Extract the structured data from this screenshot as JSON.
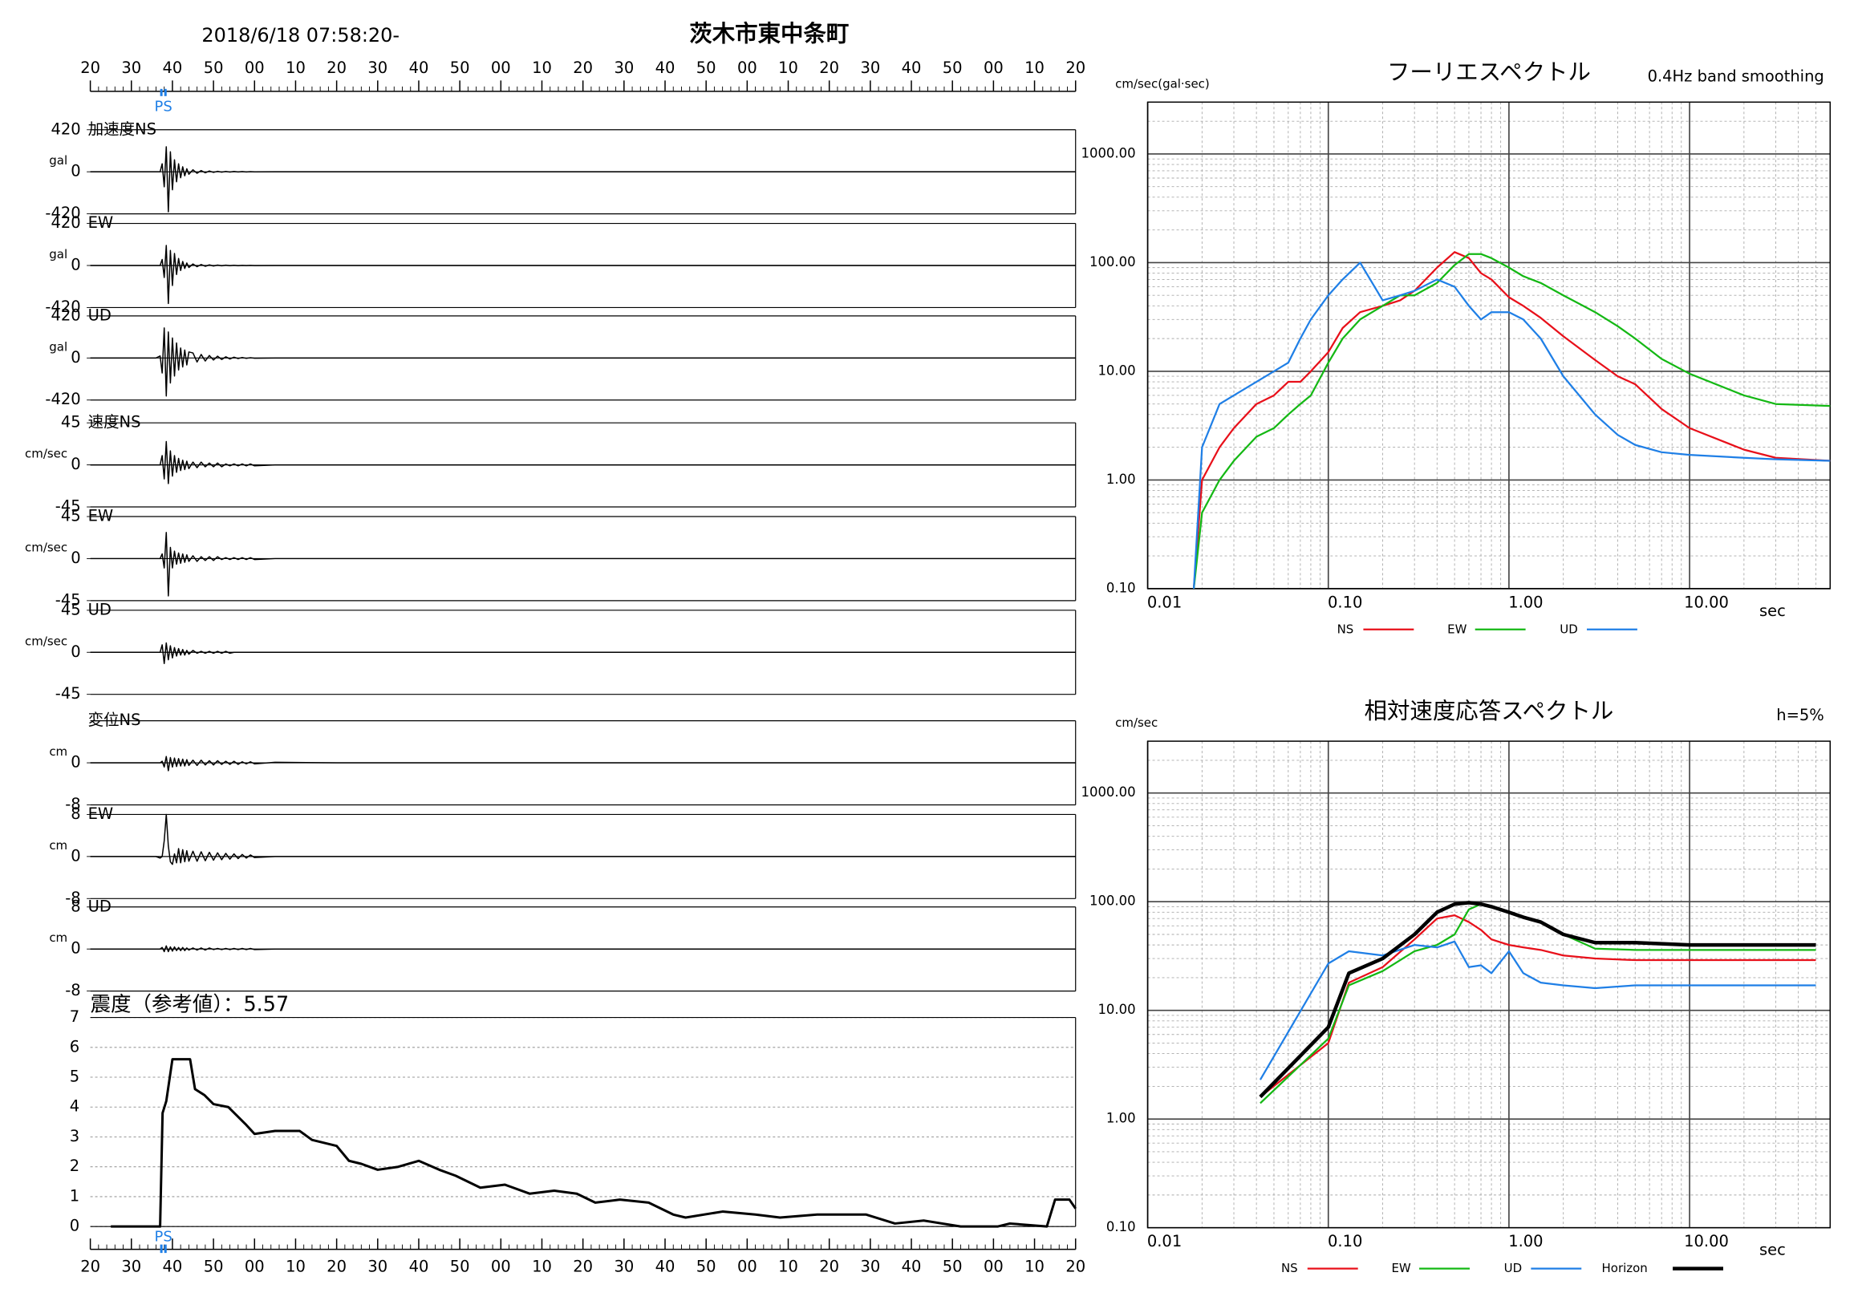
{
  "chart_data": [
    {
      "type": "waveforms",
      "title": "茨木市東中条町",
      "subtitle": "2018/6/18 07:58:20-",
      "xlim": [
        0,
        240
      ],
      "xticks": [
        {
          "value": 0,
          "label": "20"
        },
        {
          "value": 10,
          "label": "30"
        },
        {
          "value": 20,
          "label": "40"
        },
        {
          "value": 30,
          "label": "50"
        },
        {
          "value": 40,
          "label": "00"
        },
        {
          "value": 50,
          "label": "10"
        },
        {
          "value": 60,
          "label": "20"
        },
        {
          "value": 70,
          "label": "30"
        },
        {
          "value": 80,
          "label": "40"
        },
        {
          "value": 90,
          "label": "50"
        },
        {
          "value": 100,
          "label": "00"
        },
        {
          "value": 110,
          "label": "10"
        },
        {
          "value": 120,
          "label": "20"
        },
        {
          "value": 130,
          "label": "30"
        },
        {
          "value": 140,
          "label": "40"
        },
        {
          "value": 150,
          "label": "50"
        },
        {
          "value": 160,
          "label": "00"
        },
        {
          "value": 170,
          "label": "10"
        },
        {
          "value": 180,
          "label": "20"
        },
        {
          "value": 190,
          "label": "30"
        },
        {
          "value": 200,
          "label": "40"
        },
        {
          "value": 210,
          "label": "50"
        },
        {
          "value": 220,
          "label": "00"
        },
        {
          "value": 230,
          "label": "10"
        },
        {
          "value": 240,
          "label": "20"
        }
      ],
      "phase_label": "PS",
      "phase_x": [
        17.3,
        18.3
      ],
      "phase_color": "#1f7fe6",
      "x": [
        0,
        10,
        16,
        17,
        17.5,
        18,
        18.5,
        19,
        19.5,
        20,
        20.5,
        21,
        21.5,
        22,
        22.5,
        23,
        23.5,
        24,
        25,
        26,
        27,
        28,
        29,
        30,
        31,
        32,
        33,
        34,
        35,
        36,
        37,
        38,
        39,
        40,
        45,
        60,
        75,
        90,
        105,
        120,
        135,
        150,
        165,
        180,
        195,
        210,
        225,
        240
      ],
      "panels": [
        {
          "label": "加速度NS",
          "unit": "gal",
          "ylim": [
            -420,
            420
          ],
          "yticks": [
            420,
            0,
            -420
          ],
          "color": "#000000",
          "values": [
            0,
            0,
            0,
            0,
            80,
            -150,
            250,
            -400,
            200,
            -180,
            120,
            -100,
            80,
            -60,
            50,
            -40,
            30,
            -25,
            20,
            -15,
            12,
            -10,
            8,
            -6,
            5,
            -4,
            4,
            -3,
            3,
            -2,
            2,
            -2,
            1,
            -1,
            0,
            0,
            0,
            0,
            0,
            0,
            0,
            0,
            0,
            0,
            0,
            0,
            0,
            0
          ]
        },
        {
          "label": "EW",
          "unit": "gal",
          "ylim": [
            -420,
            420
          ],
          "yticks": [
            420,
            0,
            -420
          ],
          "color": "#000000",
          "values": [
            0,
            0,
            0,
            0,
            60,
            -120,
            200,
            -380,
            150,
            -200,
            120,
            -90,
            70,
            -50,
            40,
            -30,
            25,
            -20,
            15,
            -12,
            10,
            -8,
            6,
            -5,
            4,
            -3,
            3,
            -2,
            2,
            -2,
            1,
            -1,
            1,
            -1,
            0,
            0,
            0,
            0,
            0,
            0,
            0,
            0,
            0,
            0,
            0,
            0,
            0,
            0
          ]
        },
        {
          "label": "UD",
          "unit": "gal",
          "ylim": [
            -420,
            420
          ],
          "yticks": [
            420,
            0,
            -420
          ],
          "color": "#000000",
          "values": [
            0,
            0,
            0,
            20,
            -150,
            300,
            -380,
            260,
            -250,
            200,
            -180,
            150,
            -120,
            100,
            -90,
            80,
            -70,
            60,
            50,
            -40,
            35,
            -30,
            25,
            -20,
            18,
            -15,
            12,
            -10,
            8,
            -6,
            5,
            -4,
            3,
            -2,
            0,
            0,
            0,
            0,
            0,
            0,
            0,
            0,
            0,
            0,
            0,
            0,
            0,
            0
          ]
        },
        {
          "label": "速度NS",
          "unit": "cm/sec",
          "ylim": [
            -45,
            45
          ],
          "yticks": [
            45,
            0,
            -45
          ],
          "color": "#000000",
          "values": [
            0,
            0,
            0,
            0,
            10,
            -15,
            25,
            -20,
            15,
            -12,
            10,
            -8,
            7,
            -6,
            5,
            -5,
            4,
            -4,
            3,
            -3,
            3,
            -2,
            2,
            -2,
            2,
            -2,
            1,
            -1,
            1,
            -1,
            1,
            -1,
            1,
            -1,
            0,
            0,
            0,
            0,
            0,
            0,
            0,
            0,
            0,
            0,
            0,
            0,
            0,
            0
          ]
        },
        {
          "label": "EW",
          "unit": "cm/sec",
          "ylim": [
            -45,
            45
          ],
          "yticks": [
            45,
            0,
            -45
          ],
          "color": "#000000",
          "values": [
            0,
            0,
            0,
            0,
            5,
            -10,
            28,
            -40,
            12,
            -10,
            8,
            -6,
            6,
            -5,
            5,
            -4,
            4,
            -3,
            3,
            -3,
            2,
            -2,
            2,
            -2,
            2,
            -1,
            1,
            -1,
            1,
            -1,
            1,
            -1,
            1,
            -1,
            0,
            0,
            0,
            0,
            0,
            0,
            0,
            0,
            0,
            0,
            0,
            0,
            0,
            0
          ]
        },
        {
          "label": "UD",
          "unit": "cm/sec",
          "ylim": [
            -45,
            45
          ],
          "yticks": [
            45,
            0,
            -45
          ],
          "color": "#000000",
          "values": [
            0,
            0,
            0,
            0,
            8,
            -12,
            10,
            -8,
            7,
            -6,
            5,
            -4,
            4,
            -3,
            3,
            -3,
            2,
            -2,
            2,
            -1,
            1,
            -1,
            1,
            -1,
            1,
            -1,
            1,
            -1,
            0,
            0,
            0,
            0,
            0,
            0,
            0,
            0,
            0,
            0,
            0,
            0,
            0,
            0,
            0,
            0,
            0,
            0,
            0,
            0
          ]
        },
        {
          "label": "変位NS",
          "unit": "cm",
          "ylim": [
            -8,
            8
          ],
          "yticks": [
            0,
            -8
          ],
          "color": "#000000",
          "values": [
            0,
            0,
            0,
            0,
            0.3,
            -0.8,
            1.2,
            -1.5,
            1.0,
            -0.8,
            0.9,
            -0.7,
            0.8,
            -0.6,
            0.7,
            -0.6,
            0.6,
            -0.5,
            0.5,
            -0.5,
            0.5,
            -0.4,
            0.4,
            -0.4,
            0.4,
            -0.3,
            0.3,
            -0.3,
            0.3,
            -0.3,
            0.2,
            -0.2,
            0.2,
            -0.2,
            0.1,
            0,
            0,
            0,
            0,
            0,
            0,
            0,
            0,
            0,
            0,
            0,
            0,
            0
          ]
        },
        {
          "label": "EW",
          "unit": "cm",
          "ylim": [
            -8,
            8
          ],
          "yticks": [
            8,
            0,
            -8
          ],
          "color": "#000000",
          "values": [
            0,
            0,
            0,
            -0.3,
            0,
            3,
            8,
            2,
            -1,
            -1.5,
            0.5,
            -1.2,
            1.5,
            -1.2,
            1.3,
            -1.0,
            1.1,
            -0.9,
            1.0,
            -0.9,
            0.9,
            -0.8,
            0.8,
            -0.7,
            0.7,
            -0.6,
            0.6,
            -0.5,
            0.5,
            -0.4,
            0.4,
            -0.3,
            0.3,
            -0.2,
            0,
            0,
            0,
            0,
            0,
            0,
            0,
            0,
            0,
            0,
            0,
            0,
            0,
            0
          ]
        },
        {
          "label": "UD",
          "unit": "cm",
          "ylim": [
            -8,
            8
          ],
          "yticks": [
            8,
            0,
            -8
          ],
          "color": "#000000",
          "values": [
            0,
            0,
            0,
            0,
            0.3,
            -0.5,
            0.6,
            -0.5,
            0.4,
            -0.4,
            0.4,
            -0.3,
            0.3,
            -0.3,
            0.3,
            -0.3,
            0.2,
            -0.2,
            0.2,
            -0.2,
            0.2,
            -0.2,
            0.2,
            -0.1,
            0.1,
            -0.1,
            0.1,
            -0.1,
            0.1,
            -0.1,
            0.1,
            -0.1,
            0.1,
            -0.1,
            0,
            0,
            0,
            0,
            0,
            0,
            0,
            0,
            0,
            0,
            0,
            0,
            0,
            0
          ]
        }
      ]
    },
    {
      "type": "line",
      "title": "震度（参考値）：5.57",
      "color": "#000000",
      "grid": true,
      "x": [
        5,
        17,
        17.6,
        18.5,
        20,
        24.3,
        25.5,
        27.8,
        30,
        33.6,
        38,
        40,
        45,
        51,
        54,
        60,
        63,
        66,
        70,
        75,
        80,
        85,
        89,
        95,
        101,
        107,
        113,
        118.5,
        123,
        129,
        136,
        142,
        145,
        154,
        162,
        168,
        177,
        189,
        196,
        203,
        212,
        221,
        224,
        233,
        235,
        238.5,
        240
      ],
      "values": [
        0,
        0,
        3.8,
        4.2,
        5.6,
        5.6,
        4.6,
        4.4,
        4.1,
        4.0,
        3.4,
        3.1,
        3.2,
        3.2,
        2.9,
        2.7,
        2.2,
        2.1,
        1.9,
        2.0,
        2.2,
        1.9,
        1.7,
        1.3,
        1.4,
        1.1,
        1.2,
        1.1,
        0.8,
        0.9,
        0.8,
        0.4,
        0.3,
        0.5,
        0.4,
        0.3,
        0.4,
        0.4,
        0.1,
        0.2,
        0.0,
        0.0,
        0.1,
        0.0,
        0.9,
        0.9,
        0.6
      ],
      "ylim": [
        0,
        7
      ],
      "yticks": [
        0,
        1,
        2,
        3,
        4,
        5,
        6,
        7
      ]
    },
    {
      "type": "line",
      "title": "フーリエスペクトル",
      "subtitle": "0.4Hz band smoothing",
      "y_label": "cm/sec(gal·sec)",
      "x_label": "sec",
      "xscale": "log",
      "yscale": "log",
      "grid": true,
      "legend": "bottom",
      "xlim": [
        0.01,
        60
      ],
      "xticks": [
        0.01,
        {
          "value": 0.1,
          "label": "0.10"
        },
        {
          "value": 1,
          "label": "1.00"
        },
        {
          "value": 10,
          "label": "10.00"
        }
      ],
      "ylim": [
        0.1,
        3000
      ],
      "yticks": [
        {
          "value": 0.1,
          "label": "0.10"
        },
        {
          "value": 1,
          "label": "1.00"
        },
        {
          "value": 10,
          "label": "10.00"
        },
        {
          "value": 100,
          "label": "100.00"
        },
        {
          "value": 1000,
          "label": "1000.00"
        }
      ],
      "x": [
        0.018,
        0.02,
        0.025,
        0.03,
        0.04,
        0.05,
        0.06,
        0.07,
        0.08,
        0.1,
        0.12,
        0.15,
        0.2,
        0.25,
        0.3,
        0.4,
        0.5,
        0.6,
        0.7,
        0.8,
        1,
        1.2,
        1.5,
        2,
        3,
        4,
        5,
        7,
        10,
        20,
        30,
        60
      ],
      "series": [
        {
          "name": "NS",
          "color": "#e8101a",
          "values": [
            0.1,
            1,
            2,
            3,
            5,
            6,
            8,
            8,
            10,
            15,
            25,
            35,
            40,
            45,
            55,
            90,
            125,
            110,
            80,
            70,
            48,
            40,
            31,
            21,
            12.7,
            9,
            7.6,
            4.5,
            3,
            1.9,
            1.6,
            1.5
          ]
        },
        {
          "name": "EW",
          "color": "#14b814",
          "values": [
            0.1,
            0.5,
            1,
            1.5,
            2.5,
            3,
            4,
            5,
            6,
            12,
            20,
            30,
            40,
            50,
            50,
            65,
            95,
            120,
            120,
            110,
            90,
            75,
            65,
            50,
            35,
            26,
            20,
            13,
            9.5,
            6,
            5,
            4.8
          ]
        },
        {
          "name": "UD",
          "color": "#1f7fe6",
          "values": [
            0.1,
            2,
            5,
            6,
            8,
            10,
            12,
            20,
            30,
            50,
            70,
            100,
            45,
            50,
            55,
            70,
            60,
            40,
            30,
            35,
            35,
            30,
            20,
            9,
            4,
            2.6,
            2.1,
            1.8,
            1.7,
            1.6,
            1.55,
            1.5
          ]
        }
      ]
    },
    {
      "type": "line",
      "title": "相対速度応答スペクトル",
      "subtitle": "h=5%",
      "y_label": "cm/sec",
      "x_label": "sec",
      "xscale": "log",
      "yscale": "log",
      "grid": true,
      "legend": "bottom",
      "xlim": [
        0.01,
        60
      ],
      "xticks": [
        0.01,
        {
          "value": 0.1,
          "label": "0.10"
        },
        {
          "value": 1,
          "label": "1.00"
        },
        {
          "value": 10,
          "label": "10.00"
        }
      ],
      "ylim": [
        0.1,
        3000
      ],
      "yticks": [
        {
          "value": 0.1,
          "label": "0.10"
        },
        {
          "value": 1,
          "label": "1.00"
        },
        {
          "value": 10,
          "label": "10.00"
        },
        {
          "value": 100,
          "label": "100.00"
        },
        {
          "value": 1000,
          "label": "1000.00"
        }
      ],
      "x": [
        0.042,
        0.1,
        0.13,
        0.2,
        0.3,
        0.4,
        0.5,
        0.6,
        0.7,
        0.8,
        1,
        1.2,
        1.5,
        2,
        3,
        5,
        10,
        20,
        50
      ],
      "series": [
        {
          "name": "NS",
          "color": "#e8101a",
          "values": [
            1.6,
            5,
            18,
            25,
            45,
            70,
            75,
            65,
            55,
            45,
            40,
            38,
            36,
            32,
            30,
            29,
            29,
            29,
            29
          ]
        },
        {
          "name": "EW",
          "color": "#14b814",
          "values": [
            1.4,
            5.5,
            17,
            23,
            35,
            40,
            50,
            85,
            95,
            90,
            80,
            72,
            65,
            50,
            37,
            36,
            36,
            36,
            36
          ]
        },
        {
          "name": "UD",
          "color": "#1f7fe6",
          "values": [
            2.3,
            27,
            35,
            32,
            40,
            38,
            43,
            25,
            26,
            22,
            35,
            22,
            18,
            17,
            16,
            17,
            17,
            17,
            17
          ]
        },
        {
          "name": "Horizon",
          "color": "#000000",
          "width": 3,
          "values": [
            1.6,
            7,
            22,
            30,
            50,
            80,
            95,
            98,
            95,
            90,
            80,
            72,
            65,
            50,
            42,
            42,
            40,
            40,
            40
          ]
        }
      ]
    }
  ]
}
